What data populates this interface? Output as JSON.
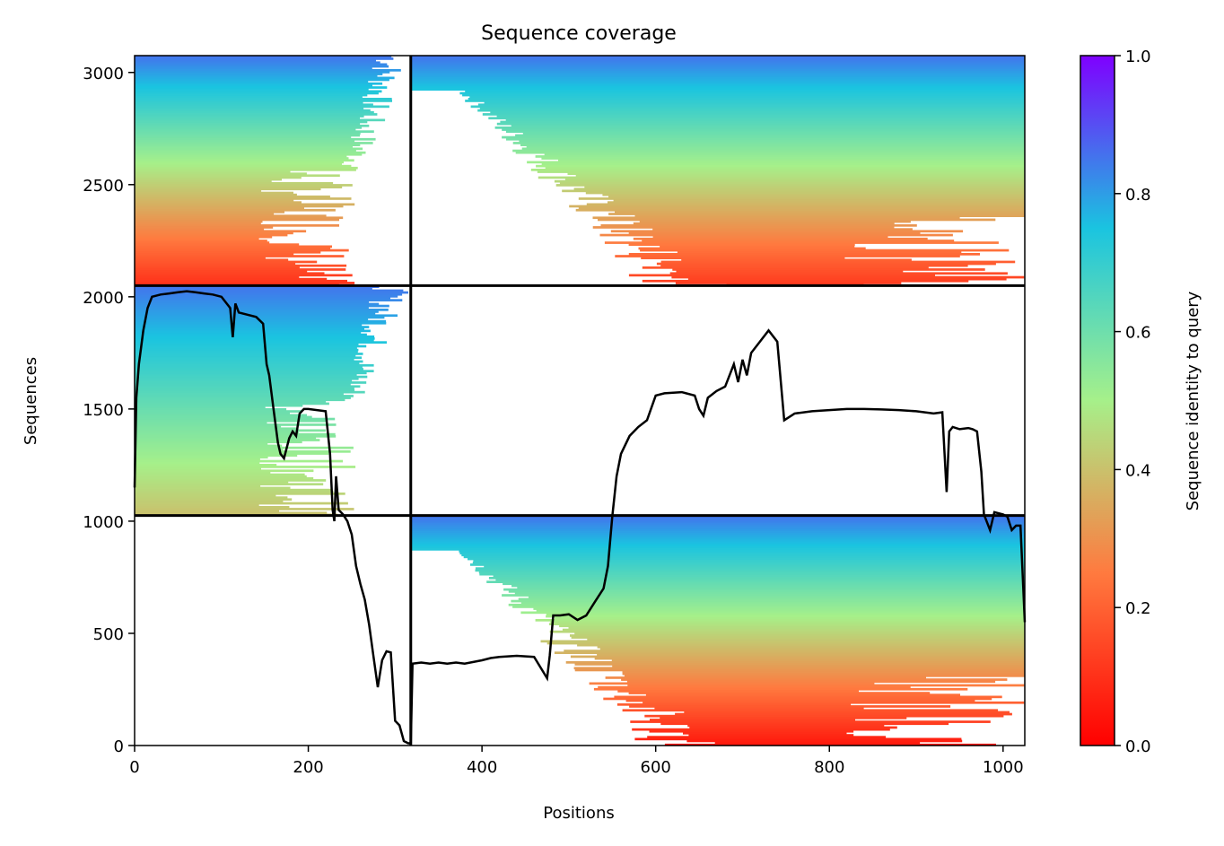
{
  "chart_data": {
    "type": "heatmap",
    "title": "Sequence coverage",
    "xlabel": "Positions",
    "ylabel": "Sequences",
    "xlim": [
      0,
      1025
    ],
    "ylim": [
      0,
      3075
    ],
    "x_ticks": [
      0,
      200,
      400,
      600,
      800,
      1000
    ],
    "y_ticks": [
      0,
      500,
      1000,
      1500,
      2000,
      2500,
      3000
    ],
    "colorbar": {
      "label": "Sequence identity to query",
      "range": [
        0,
        1
      ],
      "ticks": [
        0.0,
        0.2,
        0.4,
        0.6,
        0.8,
        1.0
      ],
      "tick_labels": [
        "0.0",
        "0.2",
        "0.4",
        "0.6",
        "0.8",
        "1.0"
      ],
      "colormap": "rainbow_r",
      "colors": [
        "#ff0000",
        "#ff7a3f",
        "#a6f08a",
        "#1ac4e0",
        "#7f00ff"
      ]
    },
    "domain_dividers": {
      "x": [
        318
      ],
      "y": [
        1025,
        2050
      ]
    },
    "blocks": [
      {
        "name": "",
        "x": [
          0,
          318
        ],
        "y": [
          2050,
          3075
        ],
        "identity_top": 0.85,
        "identity_bottom": 0.1,
        "coverage_taper": "left-dense"
      },
      {
        "name": "",
        "x": [
          318,
          1025
        ],
        "y": [
          2050,
          3075
        ],
        "identity_top": 0.85,
        "identity_bottom": 0.12,
        "coverage_taper": "right-dense"
      },
      {
        "name": "",
        "x": [
          0,
          318
        ],
        "y": [
          1025,
          2050
        ],
        "identity_top": 0.85,
        "identity_bottom": 0.4,
        "coverage_taper": "left-dense"
      },
      {
        "name": "",
        "x": [
          318,
          1025
        ],
        "y": [
          0,
          1025
        ],
        "identity_top": 0.85,
        "identity_bottom": 0.05,
        "coverage_taper": "right-dense"
      }
    ],
    "coverage_line": {
      "color": "#000000",
      "x": [
        0,
        2,
        5,
        10,
        15,
        20,
        30,
        40,
        50,
        60,
        70,
        80,
        90,
        100,
        110,
        113,
        116,
        120,
        130,
        140,
        148,
        152,
        155,
        160,
        165,
        168,
        172,
        178,
        182,
        186,
        190,
        195,
        200,
        210,
        220,
        225,
        228,
        230,
        232,
        235,
        240,
        245,
        250,
        255,
        260,
        265,
        270,
        275,
        280,
        285,
        290,
        295,
        300,
        305,
        310,
        315,
        318,
        320,
        330,
        340,
        350,
        360,
        370,
        380,
        400,
        410,
        420,
        440,
        460,
        475,
        478,
        482,
        490,
        500,
        510,
        520,
        530,
        540,
        545,
        550,
        555,
        560,
        570,
        580,
        590,
        600,
        610,
        630,
        645,
        650,
        655,
        660,
        670,
        680,
        690,
        695,
        700,
        705,
        710,
        720,
        730,
        740,
        748,
        752,
        760,
        780,
        800,
        820,
        840,
        860,
        880,
        900,
        920,
        930,
        935,
        938,
        942,
        950,
        960,
        965,
        970,
        975,
        978,
        985,
        990,
        1000,
        1005,
        1010,
        1015,
        1020,
        1025
      ],
      "y": [
        1150,
        1550,
        1700,
        1850,
        1950,
        2000,
        2010,
        2015,
        2020,
        2025,
        2020,
        2015,
        2010,
        2000,
        1950,
        1820,
        1970,
        1930,
        1920,
        1910,
        1880,
        1700,
        1650,
        1500,
        1350,
        1300,
        1280,
        1370,
        1400,
        1380,
        1480,
        1500,
        1500,
        1495,
        1490,
        1300,
        1050,
        1000,
        1200,
        1050,
        1030,
        1000,
        940,
        800,
        720,
        650,
        540,
        400,
        260,
        380,
        420,
        415,
        110,
        90,
        20,
        10,
        10,
        365,
        370,
        365,
        370,
        365,
        370,
        365,
        380,
        390,
        395,
        400,
        395,
        300,
        400,
        580,
        580,
        585,
        560,
        580,
        640,
        700,
        800,
        1020,
        1200,
        1300,
        1380,
        1420,
        1450,
        1560,
        1570,
        1575,
        1560,
        1500,
        1470,
        1550,
        1580,
        1600,
        1700,
        1620,
        1720,
        1650,
        1750,
        1800,
        1850,
        1800,
        1450,
        1460,
        1480,
        1490,
        1495,
        1500,
        1500,
        1498,
        1495,
        1490,
        1480,
        1485,
        1130,
        1400,
        1420,
        1410,
        1415,
        1410,
        1400,
        1220,
        1030,
        960,
        1040,
        1030,
        1020,
        960,
        980,
        980,
        550
      ]
    }
  }
}
